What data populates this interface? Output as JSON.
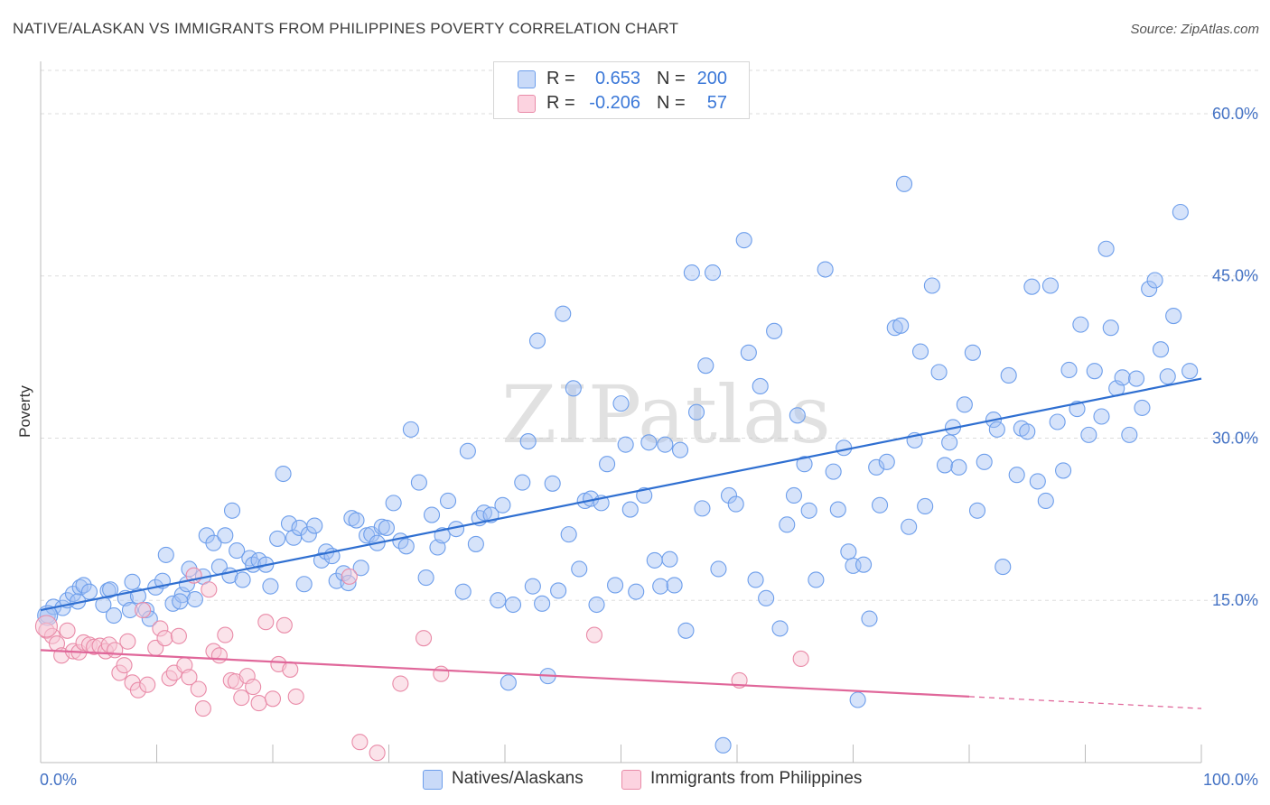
{
  "header": {
    "title": "NATIVE/ALASKAN VS IMMIGRANTS FROM PHILIPPINES POVERTY CORRELATION CHART",
    "source": "Source: ZipAtlas.com"
  },
  "watermark": "ZIPatlas",
  "legend": {
    "rows": [
      {
        "r_label": "R =",
        "r_value": "0.653",
        "n_label": "N =",
        "n_value": "200",
        "color": "#a4c2f4"
      },
      {
        "r_label": "R =",
        "r_value": "-0.206",
        "n_label": "N =",
        "n_value": "57",
        "color": "#f4b6c8"
      }
    ]
  },
  "bottom_legend": [
    {
      "label": "Natives/Alaskans",
      "color": "#a4c2f4"
    },
    {
      "label": "Immigrants from Philippines",
      "color": "#f4b6c8"
    }
  ],
  "colors": {
    "blue_fill": "#a4c2f4",
    "blue_stroke": "#6d9eeb",
    "blue_line": "#2f6fd1",
    "pink_fill": "#f8c8d6",
    "pink_stroke": "#e98ba8",
    "pink_line": "#e0679a",
    "grid": "#dddddd",
    "tick_text": "#4472c4"
  },
  "chart_data": {
    "type": "scatter",
    "title": "NATIVE/ALASKAN VS IMMIGRANTS FROM PHILIPPINES POVERTY CORRELATION CHART",
    "xlabel": "",
    "ylabel": "Poverty",
    "xlim": [
      0,
      100
    ],
    "ylim": [
      0,
      64
    ],
    "x_ticks_labels": [
      "0.0%",
      "100.0%"
    ],
    "y_ticks": [
      15,
      30,
      45,
      60
    ],
    "y_tick_labels": [
      "15.0%",
      "30.0%",
      "45.0%",
      "60.0%"
    ],
    "grid": "horizontal dashed",
    "legend_position": "top-center",
    "series": [
      {
        "name": "Natives/Alaskans",
        "color": "#a4c2f4",
        "trend": {
          "x": [
            0,
            100
          ],
          "y": [
            14.1,
            35.5
          ]
        },
        "points": [
          [
            0.6,
            13.6
          ],
          [
            1.1,
            14.4
          ],
          [
            1.9,
            14.3
          ],
          [
            2.3,
            15.0
          ],
          [
            2.8,
            15.6
          ],
          [
            3.4,
            16.2
          ],
          [
            3.7,
            16.4
          ],
          [
            4.2,
            15.8
          ],
          [
            5.4,
            14.6
          ],
          [
            5.8,
            15.9
          ],
          [
            6.3,
            13.6
          ],
          [
            7.3,
            15.2
          ],
          [
            7.7,
            14.1
          ],
          [
            7.9,
            16.7
          ],
          [
            8.4,
            15.4
          ],
          [
            9.1,
            14.1
          ],
          [
            9.4,
            13.3
          ],
          [
            9.9,
            16.2
          ],
          [
            10.5,
            16.8
          ],
          [
            10.8,
            19.2
          ],
          [
            11.4,
            14.7
          ],
          [
            12.2,
            15.5
          ],
          [
            12.6,
            16.5
          ],
          [
            12.8,
            17.9
          ],
          [
            13.3,
            15.1
          ],
          [
            14.0,
            17.2
          ],
          [
            14.3,
            21.0
          ],
          [
            14.9,
            20.3
          ],
          [
            15.4,
            18.1
          ],
          [
            15.9,
            21.0
          ],
          [
            16.3,
            17.3
          ],
          [
            16.5,
            23.3
          ],
          [
            16.9,
            19.6
          ],
          [
            17.4,
            16.9
          ],
          [
            18.0,
            18.9
          ],
          [
            18.3,
            18.3
          ],
          [
            18.8,
            18.7
          ],
          [
            19.4,
            18.3
          ],
          [
            19.8,
            16.3
          ],
          [
            20.4,
            20.7
          ],
          [
            20.9,
            26.7
          ],
          [
            21.4,
            22.1
          ],
          [
            21.8,
            20.8
          ],
          [
            22.3,
            21.7
          ],
          [
            22.7,
            16.5
          ],
          [
            23.1,
            21.1
          ],
          [
            23.6,
            21.9
          ],
          [
            24.2,
            18.7
          ],
          [
            24.6,
            19.5
          ],
          [
            25.1,
            19.1
          ],
          [
            25.5,
            16.8
          ],
          [
            26.1,
            17.5
          ],
          [
            26.8,
            22.6
          ],
          [
            27.2,
            22.4
          ],
          [
            27.6,
            18.0
          ],
          [
            28.1,
            21.0
          ],
          [
            28.5,
            21.1
          ],
          [
            29.0,
            20.3
          ],
          [
            29.4,
            21.8
          ],
          [
            29.8,
            21.7
          ],
          [
            30.4,
            24.0
          ],
          [
            31.0,
            20.5
          ],
          [
            31.5,
            20.0
          ],
          [
            31.9,
            30.8
          ],
          [
            32.6,
            25.9
          ],
          [
            33.2,
            17.1
          ],
          [
            33.7,
            22.9
          ],
          [
            34.2,
            19.9
          ],
          [
            34.6,
            21.0
          ],
          [
            35.1,
            24.2
          ],
          [
            35.8,
            21.6
          ],
          [
            36.4,
            15.8
          ],
          [
            36.8,
            28.8
          ],
          [
            37.8,
            22.6
          ],
          [
            38.2,
            23.1
          ],
          [
            38.8,
            22.9
          ],
          [
            39.4,
            15.0
          ],
          [
            39.8,
            23.8
          ],
          [
            40.3,
            7.4
          ],
          [
            40.7,
            14.6
          ],
          [
            41.5,
            25.9
          ],
          [
            42.0,
            29.7
          ],
          [
            42.4,
            16.3
          ],
          [
            42.8,
            39.0
          ],
          [
            43.2,
            14.7
          ],
          [
            43.7,
            8.0
          ],
          [
            44.1,
            25.8
          ],
          [
            44.6,
            15.9
          ],
          [
            45.0,
            41.5
          ],
          [
            45.5,
            21.1
          ],
          [
            45.9,
            34.6
          ],
          [
            46.4,
            17.9
          ],
          [
            46.9,
            24.2
          ],
          [
            47.4,
            24.4
          ],
          [
            47.9,
            14.6
          ],
          [
            48.3,
            24.0
          ],
          [
            48.8,
            27.6
          ],
          [
            49.5,
            16.4
          ],
          [
            50.0,
            33.2
          ],
          [
            50.4,
            29.4
          ],
          [
            50.8,
            23.4
          ],
          [
            51.3,
            15.8
          ],
          [
            52.0,
            24.7
          ],
          [
            52.4,
            29.6
          ],
          [
            52.9,
            18.7
          ],
          [
            53.4,
            16.3
          ],
          [
            53.8,
            29.4
          ],
          [
            54.2,
            18.8
          ],
          [
            54.6,
            16.4
          ],
          [
            55.1,
            28.9
          ],
          [
            55.6,
            12.2
          ],
          [
            56.1,
            45.3
          ],
          [
            56.5,
            32.4
          ],
          [
            57.0,
            23.5
          ],
          [
            57.3,
            36.7
          ],
          [
            57.9,
            45.3
          ],
          [
            58.4,
            17.9
          ],
          [
            58.8,
            1.6
          ],
          [
            59.3,
            24.7
          ],
          [
            59.9,
            23.9
          ],
          [
            60.6,
            48.3
          ],
          [
            61.0,
            37.9
          ],
          [
            61.6,
            16.9
          ],
          [
            62.0,
            34.8
          ],
          [
            62.5,
            15.2
          ],
          [
            63.2,
            39.9
          ],
          [
            63.7,
            12.4
          ],
          [
            64.3,
            22.0
          ],
          [
            64.9,
            24.7
          ],
          [
            65.2,
            32.1
          ],
          [
            65.8,
            27.6
          ],
          [
            66.2,
            23.3
          ],
          [
            66.8,
            16.9
          ],
          [
            67.6,
            45.6
          ],
          [
            68.3,
            26.9
          ],
          [
            68.7,
            23.4
          ],
          [
            69.2,
            29.1
          ],
          [
            69.6,
            19.5
          ],
          [
            70.0,
            18.2
          ],
          [
            70.4,
            5.8
          ],
          [
            70.9,
            18.3
          ],
          [
            71.4,
            13.3
          ],
          [
            72.0,
            27.3
          ],
          [
            72.3,
            23.8
          ],
          [
            72.9,
            27.8
          ],
          [
            73.6,
            40.2
          ],
          [
            74.1,
            40.4
          ],
          [
            74.4,
            53.5
          ],
          [
            74.8,
            21.8
          ],
          [
            75.3,
            29.8
          ],
          [
            75.8,
            38.0
          ],
          [
            76.2,
            23.7
          ],
          [
            76.8,
            44.1
          ],
          [
            77.4,
            36.1
          ],
          [
            77.9,
            27.5
          ],
          [
            78.3,
            29.6
          ],
          [
            78.6,
            31.0
          ],
          [
            79.1,
            27.3
          ],
          [
            79.6,
            33.1
          ],
          [
            80.3,
            37.9
          ],
          [
            80.7,
            23.3
          ],
          [
            81.3,
            27.8
          ],
          [
            82.1,
            31.7
          ],
          [
            82.4,
            30.8
          ],
          [
            82.9,
            18.1
          ],
          [
            83.4,
            35.8
          ],
          [
            84.1,
            26.6
          ],
          [
            84.5,
            30.9
          ],
          [
            85.0,
            30.6
          ],
          [
            85.4,
            44.0
          ],
          [
            85.9,
            26.0
          ],
          [
            86.6,
            24.2
          ],
          [
            87.0,
            44.1
          ],
          [
            87.6,
            31.5
          ],
          [
            88.1,
            27.0
          ],
          [
            88.6,
            36.3
          ],
          [
            89.3,
            32.7
          ],
          [
            89.6,
            40.5
          ],
          [
            90.3,
            30.3
          ],
          [
            90.8,
            36.2
          ],
          [
            91.4,
            32.0
          ],
          [
            91.8,
            47.5
          ],
          [
            92.2,
            40.2
          ],
          [
            92.7,
            34.6
          ],
          [
            93.2,
            35.6
          ],
          [
            93.8,
            30.3
          ],
          [
            94.4,
            35.5
          ],
          [
            94.9,
            32.8
          ],
          [
            95.5,
            43.8
          ],
          [
            96.0,
            44.6
          ],
          [
            96.5,
            38.2
          ],
          [
            97.1,
            35.7
          ],
          [
            97.6,
            41.3
          ],
          [
            98.2,
            50.9
          ],
          [
            99.0,
            36.2
          ],
          [
            3.2,
            14.9
          ],
          [
            6.0,
            16.0
          ],
          [
            12.0,
            14.9
          ],
          [
            26.5,
            16.6
          ],
          [
            37.5,
            20.2
          ]
        ]
      },
      {
        "name": "Immigrants from Philippines",
        "color": "#f4b6c8",
        "trend": {
          "x": [
            0,
            80
          ],
          "y": [
            10.4,
            6.1
          ]
        },
        "trend_dashed": {
          "x": [
            80,
            100
          ],
          "y": [
            6.1,
            5.0
          ]
        },
        "points": [
          [
            0.5,
            12.2
          ],
          [
            1.0,
            11.7
          ],
          [
            1.4,
            11.0
          ],
          [
            1.8,
            9.9
          ],
          [
            2.3,
            12.2
          ],
          [
            2.8,
            10.3
          ],
          [
            3.3,
            10.2
          ],
          [
            3.7,
            11.1
          ],
          [
            4.2,
            10.9
          ],
          [
            4.6,
            10.7
          ],
          [
            5.1,
            10.8
          ],
          [
            5.6,
            10.3
          ],
          [
            5.9,
            10.9
          ],
          [
            6.4,
            10.4
          ],
          [
            6.8,
            8.3
          ],
          [
            7.2,
            9.0
          ],
          [
            7.5,
            11.2
          ],
          [
            7.9,
            7.4
          ],
          [
            8.4,
            6.7
          ],
          [
            8.8,
            14.1
          ],
          [
            9.2,
            7.2
          ],
          [
            9.9,
            10.6
          ],
          [
            10.3,
            12.4
          ],
          [
            10.7,
            11.5
          ],
          [
            11.1,
            7.8
          ],
          [
            11.5,
            8.3
          ],
          [
            11.9,
            11.7
          ],
          [
            12.4,
            9.0
          ],
          [
            12.8,
            7.9
          ],
          [
            13.2,
            17.3
          ],
          [
            13.6,
            6.8
          ],
          [
            14.0,
            5.0
          ],
          [
            14.5,
            16.0
          ],
          [
            14.9,
            10.3
          ],
          [
            15.4,
            9.9
          ],
          [
            15.9,
            11.8
          ],
          [
            16.4,
            7.6
          ],
          [
            16.8,
            7.5
          ],
          [
            17.3,
            6.0
          ],
          [
            17.8,
            8.0
          ],
          [
            18.3,
            7.0
          ],
          [
            18.8,
            5.5
          ],
          [
            19.4,
            13.0
          ],
          [
            20.0,
            5.9
          ],
          [
            20.5,
            9.1
          ],
          [
            21.0,
            12.7
          ],
          [
            21.5,
            8.6
          ],
          [
            22.0,
            6.1
          ],
          [
            26.6,
            17.2
          ],
          [
            27.5,
            1.9
          ],
          [
            29.0,
            0.9
          ],
          [
            31.0,
            7.3
          ],
          [
            33.0,
            11.5
          ],
          [
            34.5,
            8.2
          ],
          [
            47.7,
            11.8
          ],
          [
            65.5,
            9.6
          ],
          [
            60.2,
            7.6
          ]
        ]
      }
    ]
  }
}
